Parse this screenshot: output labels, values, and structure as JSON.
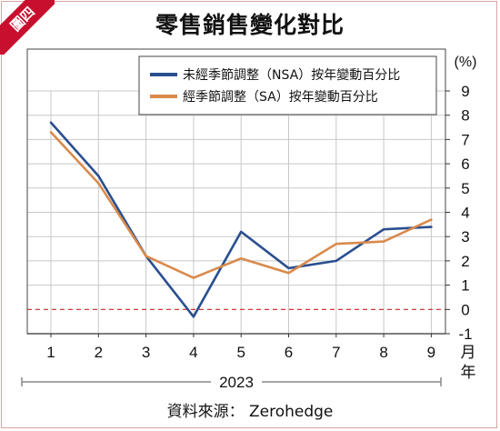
{
  "badge": "圖四",
  "source": "資料來源： Zerohedge",
  "colors": {
    "nsa": "#2a4f8f",
    "sa": "#d98a4c",
    "zero_line": "#cc2222",
    "badge": "#c8102e"
  },
  "chart_data": {
    "type": "line",
    "title": "零售銷售變化對比",
    "xlabel": "月年",
    "ylabel": "(%)",
    "x_group_label": "2023",
    "categories": [
      "1",
      "2",
      "3",
      "4",
      "5",
      "6",
      "7",
      "8",
      "9"
    ],
    "ylim": [
      -1,
      9
    ],
    "yticks": [
      "9",
      "8",
      "7",
      "6",
      "5",
      "4",
      "3",
      "2",
      "1",
      "0",
      "-1"
    ],
    "grid": true,
    "legend_position": "top-right",
    "series": [
      {
        "name": "未經季節調整（NSA）按年變動百分比",
        "color": "#2a4f8f",
        "values": [
          7.7,
          5.5,
          2.2,
          -0.3,
          3.2,
          1.7,
          2.0,
          3.3,
          3.4
        ]
      },
      {
        "name": "經季節調整（SA）按年變動百分比",
        "color": "#d98a4c",
        "values": [
          7.3,
          5.2,
          2.2,
          1.3,
          2.1,
          1.5,
          2.7,
          2.8,
          3.7
        ]
      }
    ]
  }
}
